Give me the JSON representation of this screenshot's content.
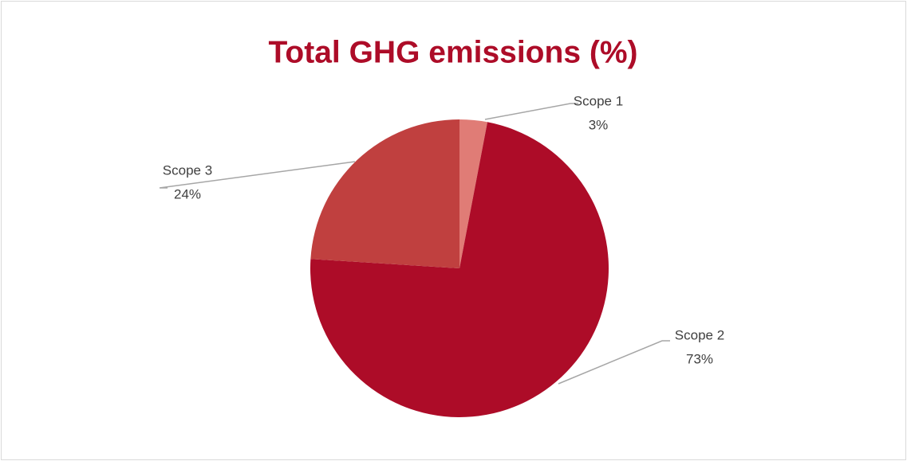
{
  "chart_data": {
    "type": "pie",
    "title": "Total GHG emissions (%)",
    "categories": [
      "Scope 1",
      "Scope 2",
      "Scope 3"
    ],
    "values": [
      3,
      73,
      24
    ],
    "value_labels": [
      "3%",
      "73%",
      "24%"
    ],
    "colors": [
      "#e07c76",
      "#ad0c28",
      "#c0403f"
    ]
  }
}
